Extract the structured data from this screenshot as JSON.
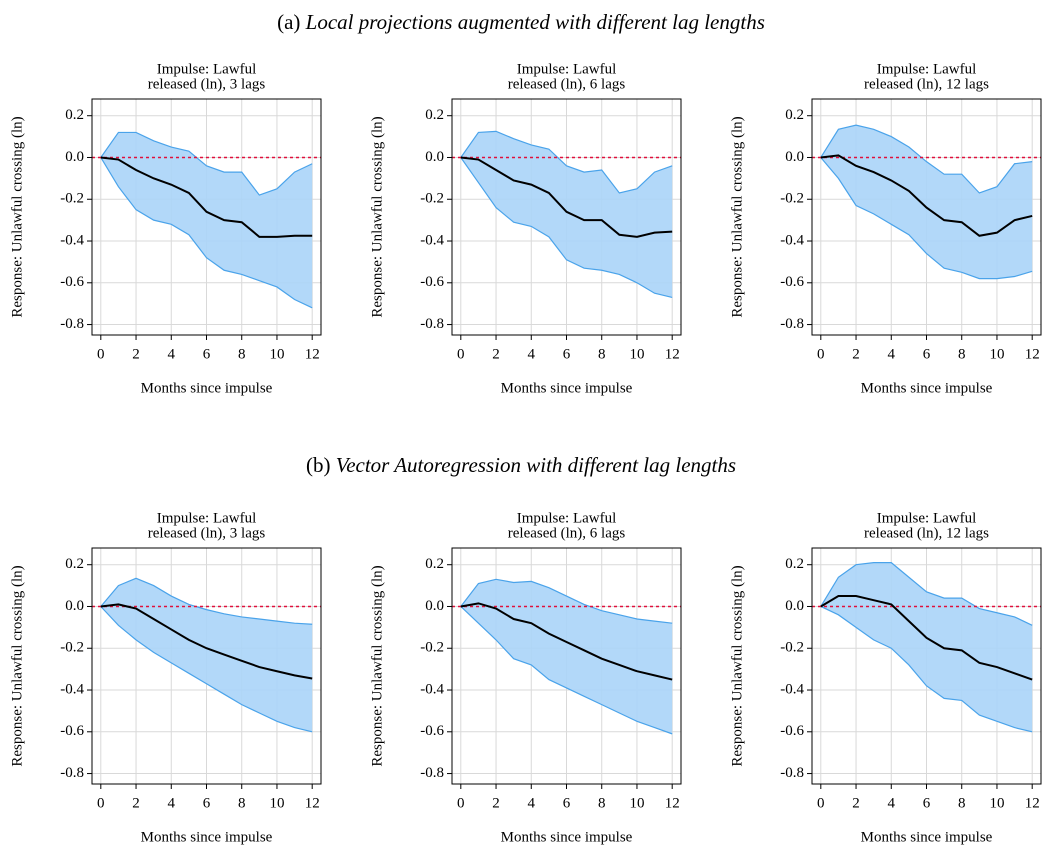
{
  "sections": [
    {
      "label": "(a)",
      "title": "Local projections augmented with different lag lengths"
    },
    {
      "label": "(b)",
      "title": "Vector Autoregression with different lag lengths"
    }
  ],
  "chart_data": [
    {
      "type": "line",
      "title": [
        "Impulse: Lawful",
        "released (ln), 3 lags"
      ],
      "x_label": "Months since impulse",
      "y_label": "Response: Unlawful crossing (ln)",
      "x": [
        0,
        1,
        2,
        3,
        4,
        5,
        6,
        7,
        8,
        9,
        10,
        11,
        12
      ],
      "values": [
        0,
        -0.01,
        -0.06,
        -0.1,
        -0.13,
        -0.17,
        -0.26,
        -0.3,
        -0.31,
        -0.38,
        -0.38,
        -0.375,
        -0.375
      ],
      "upper": [
        0,
        0.12,
        0.12,
        0.08,
        0.05,
        0.03,
        -0.04,
        -0.07,
        -0.07,
        -0.18,
        -0.15,
        -0.07,
        -0.03
      ],
      "lower": [
        0,
        -0.14,
        -0.25,
        -0.3,
        -0.32,
        -0.37,
        -0.48,
        -0.54,
        -0.56,
        -0.59,
        -0.62,
        -0.68,
        -0.72
      ],
      "xlim": [
        -0.5,
        12.5
      ],
      "ylim": [
        -0.85,
        0.28
      ],
      "xticks": [
        0,
        2,
        4,
        6,
        8,
        10,
        12
      ],
      "yticks": [
        -0.8,
        -0.6,
        -0.4,
        -0.2,
        {
          "value": 0,
          "label": "0.0"
        },
        0.2
      ],
      "grid": true,
      "line_color": "#000000",
      "band_color": "#aad4f8",
      "band_edge_color": "#4aa3ea",
      "hline": 0,
      "hline_color": "#e0103c"
    },
    {
      "type": "line",
      "title": [
        "Impulse: Lawful",
        "released (ln), 6 lags"
      ],
      "x_label": "Months since impulse",
      "y_label": "Response: Unlawful crossing (ln)",
      "x": [
        0,
        1,
        2,
        3,
        4,
        5,
        6,
        7,
        8,
        9,
        10,
        11,
        12
      ],
      "values": [
        0,
        -0.01,
        -0.06,
        -0.11,
        -0.13,
        -0.17,
        -0.26,
        -0.3,
        -0.3,
        -0.37,
        -0.38,
        -0.36,
        -0.355
      ],
      "upper": [
        0,
        0.12,
        0.125,
        0.09,
        0.06,
        0.04,
        -0.04,
        -0.07,
        -0.06,
        -0.17,
        -0.15,
        -0.07,
        -0.04
      ],
      "lower": [
        0,
        -0.12,
        -0.24,
        -0.31,
        -0.33,
        -0.38,
        -0.49,
        -0.53,
        -0.54,
        -0.56,
        -0.6,
        -0.65,
        -0.67
      ],
      "xlim": [
        -0.5,
        12.5
      ],
      "ylim": [
        -0.85,
        0.28
      ],
      "xticks": [
        0,
        2,
        4,
        6,
        8,
        10,
        12
      ],
      "yticks": [
        -0.8,
        -0.6,
        -0.4,
        -0.2,
        {
          "value": 0,
          "label": "0.0"
        },
        0.2
      ],
      "grid": true,
      "line_color": "#000000",
      "band_color": "#aad4f8",
      "band_edge_color": "#4aa3ea",
      "hline": 0,
      "hline_color": "#e0103c"
    },
    {
      "type": "line",
      "title": [
        "Impulse: Lawful",
        "released (ln), 12 lags"
      ],
      "x_label": "Months since impulse",
      "y_label": "Response: Unlawful crossing (ln)",
      "x": [
        0,
        1,
        2,
        3,
        4,
        5,
        6,
        7,
        8,
        9,
        10,
        11,
        12
      ],
      "values": [
        0,
        0.01,
        -0.04,
        -0.07,
        -0.11,
        -0.16,
        -0.24,
        -0.3,
        -0.31,
        -0.375,
        -0.36,
        -0.3,
        -0.28
      ],
      "upper": [
        0,
        0.135,
        0.155,
        0.135,
        0.1,
        0.05,
        -0.02,
        -0.08,
        -0.08,
        -0.17,
        -0.14,
        -0.03,
        -0.02
      ],
      "lower": [
        0,
        -0.1,
        -0.23,
        -0.27,
        -0.32,
        -0.37,
        -0.46,
        -0.53,
        -0.55,
        -0.58,
        -0.58,
        -0.57,
        -0.545
      ],
      "xlim": [
        -0.5,
        12.5
      ],
      "ylim": [
        -0.85,
        0.28
      ],
      "xticks": [
        0,
        2,
        4,
        6,
        8,
        10,
        12
      ],
      "yticks": [
        -0.8,
        -0.6,
        -0.4,
        -0.2,
        {
          "value": 0,
          "label": "0.0"
        },
        0.2
      ],
      "grid": true,
      "line_color": "#000000",
      "band_color": "#aad4f8",
      "band_edge_color": "#4aa3ea",
      "hline": 0,
      "hline_color": "#e0103c"
    },
    {
      "type": "line",
      "title": [
        "Impulse: Lawful",
        "released (ln), 3 lags"
      ],
      "x_label": "Months since impulse",
      "y_label": "Response: Unlawful crossing (ln)",
      "x": [
        0,
        1,
        2,
        3,
        4,
        5,
        6,
        7,
        8,
        9,
        10,
        11,
        12
      ],
      "values": [
        0,
        0.01,
        -0.01,
        -0.06,
        -0.11,
        -0.16,
        -0.2,
        -0.23,
        -0.26,
        -0.29,
        -0.31,
        -0.33,
        -0.345
      ],
      "upper": [
        0,
        0.1,
        0.135,
        0.1,
        0.05,
        0.01,
        -0.015,
        -0.035,
        -0.05,
        -0.06,
        -0.07,
        -0.08,
        -0.085
      ],
      "lower": [
        0,
        -0.09,
        -0.16,
        -0.22,
        -0.27,
        -0.32,
        -0.37,
        -0.42,
        -0.47,
        -0.51,
        -0.55,
        -0.58,
        -0.6
      ],
      "xlim": [
        -0.5,
        12.5
      ],
      "ylim": [
        -0.85,
        0.28
      ],
      "xticks": [
        0,
        2,
        4,
        6,
        8,
        10,
        12
      ],
      "yticks": [
        -0.8,
        -0.6,
        -0.4,
        -0.2,
        {
          "value": 0,
          "label": "0.0"
        },
        0.2
      ],
      "grid": true,
      "line_color": "#000000",
      "band_color": "#aad4f8",
      "band_edge_color": "#4aa3ea",
      "hline": 0,
      "hline_color": "#e0103c"
    },
    {
      "type": "line",
      "title": [
        "Impulse: Lawful",
        "released (ln), 6 lags"
      ],
      "x_label": "Months since impulse",
      "y_label": "Response: Unlawful crossing (ln)",
      "x": [
        0,
        1,
        2,
        3,
        4,
        5,
        6,
        7,
        8,
        9,
        10,
        11,
        12
      ],
      "values": [
        0,
        0.015,
        -0.01,
        -0.06,
        -0.08,
        -0.13,
        -0.17,
        -0.21,
        -0.25,
        -0.28,
        -0.31,
        -0.33,
        -0.35
      ],
      "upper": [
        0,
        0.11,
        0.13,
        0.115,
        0.12,
        0.09,
        0.05,
        0.01,
        -0.02,
        -0.04,
        -0.06,
        -0.07,
        -0.08
      ],
      "lower": [
        0,
        -0.08,
        -0.16,
        -0.25,
        -0.28,
        -0.35,
        -0.39,
        -0.43,
        -0.47,
        -0.51,
        -0.55,
        -0.58,
        -0.61
      ],
      "xlim": [
        -0.5,
        12.5
      ],
      "ylim": [
        -0.85,
        0.28
      ],
      "xticks": [
        0,
        2,
        4,
        6,
        8,
        10,
        12
      ],
      "yticks": [
        -0.8,
        -0.6,
        -0.4,
        -0.2,
        {
          "value": 0,
          "label": "0.0"
        },
        0.2
      ],
      "grid": true,
      "line_color": "#000000",
      "band_color": "#aad4f8",
      "band_edge_color": "#4aa3ea",
      "hline": 0,
      "hline_color": "#e0103c"
    },
    {
      "type": "line",
      "title": [
        "Impulse: Lawful",
        "released (ln), 12 lags"
      ],
      "x_label": "Months since impulse",
      "y_label": "Response: Unlawful crossing (ln)",
      "x": [
        0,
        1,
        2,
        3,
        4,
        5,
        6,
        7,
        8,
        9,
        10,
        11,
        12
      ],
      "values": [
        0,
        0.05,
        0.05,
        0.03,
        0.01,
        -0.07,
        -0.15,
        -0.2,
        -0.21,
        -0.27,
        -0.29,
        -0.32,
        -0.35
      ],
      "upper": [
        0,
        0.14,
        0.2,
        0.21,
        0.21,
        0.14,
        0.07,
        0.04,
        0.04,
        -0.01,
        -0.03,
        -0.05,
        -0.09
      ],
      "lower": [
        0,
        -0.04,
        -0.1,
        -0.16,
        -0.2,
        -0.28,
        -0.38,
        -0.44,
        -0.45,
        -0.52,
        -0.55,
        -0.58,
        -0.6
      ],
      "xlim": [
        -0.5,
        12.5
      ],
      "ylim": [
        -0.85,
        0.28
      ],
      "xticks": [
        0,
        2,
        4,
        6,
        8,
        10,
        12
      ],
      "yticks": [
        -0.8,
        -0.6,
        -0.4,
        -0.2,
        {
          "value": 0,
          "label": "0.0"
        },
        0.2
      ],
      "grid": true,
      "line_color": "#000000",
      "band_color": "#aad4f8",
      "band_edge_color": "#4aa3ea",
      "hline": 0,
      "hline_color": "#e0103c"
    }
  ]
}
